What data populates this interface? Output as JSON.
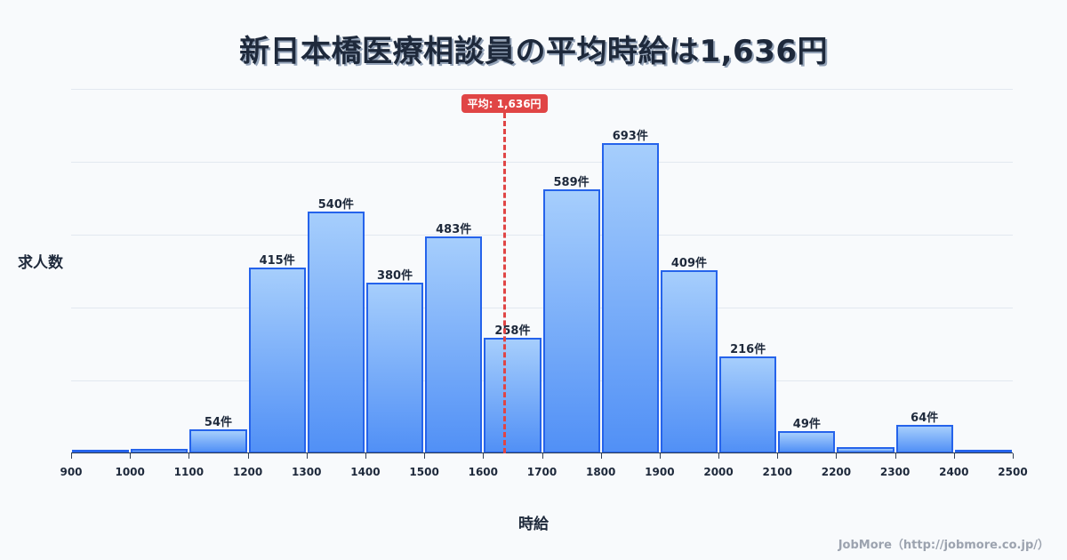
{
  "title": "新日本橋医療相談員の平均時給は1,636円",
  "footer": "JobMore（http://jobmore.co.jp/）",
  "chart_data": {
    "type": "bar",
    "title": "新日本橋医療相談員の平均時給は1,636円",
    "xlabel": "時給",
    "ylabel": "求人数",
    "bin_edges": [
      900,
      1000,
      1100,
      1200,
      1300,
      1400,
      1500,
      1600,
      1700,
      1800,
      1900,
      2000,
      2100,
      2200,
      2300,
      2400,
      2500
    ],
    "categories": [
      "900-1000",
      "1000-1100",
      "1100-1200",
      "1200-1300",
      "1300-1400",
      "1400-1500",
      "1500-1600",
      "1600-1700",
      "1700-1800",
      "1800-1900",
      "1900-2000",
      "2000-2100",
      "2100-2200",
      "2200-2300",
      "2300-2400",
      "2400-2500"
    ],
    "values": [
      4,
      10,
      54,
      415,
      540,
      380,
      483,
      258,
      589,
      693,
      409,
      216,
      49,
      14,
      64,
      7
    ],
    "labels": [
      "",
      "",
      "54件",
      "415件",
      "540件",
      "380件",
      "483件",
      "258件",
      "589件",
      "693件",
      "409件",
      "216件",
      "49件",
      "",
      "64件",
      ""
    ],
    "x_ticks": [
      "900",
      "1000",
      "1100",
      "1200",
      "1300",
      "1400",
      "1500",
      "1600",
      "1700",
      "1800",
      "1900",
      "2000",
      "2100",
      "2200",
      "2300",
      "2400",
      "2500"
    ],
    "ylim": [
      0,
      813
    ],
    "grid": true,
    "mean": {
      "value": 1636,
      "label": "平均: 1,636円",
      "color": "#e04545"
    },
    "bar_color_top": "#a6cefc",
    "bar_color_bottom": "#5190f6",
    "bar_border": "#2563eb"
  }
}
